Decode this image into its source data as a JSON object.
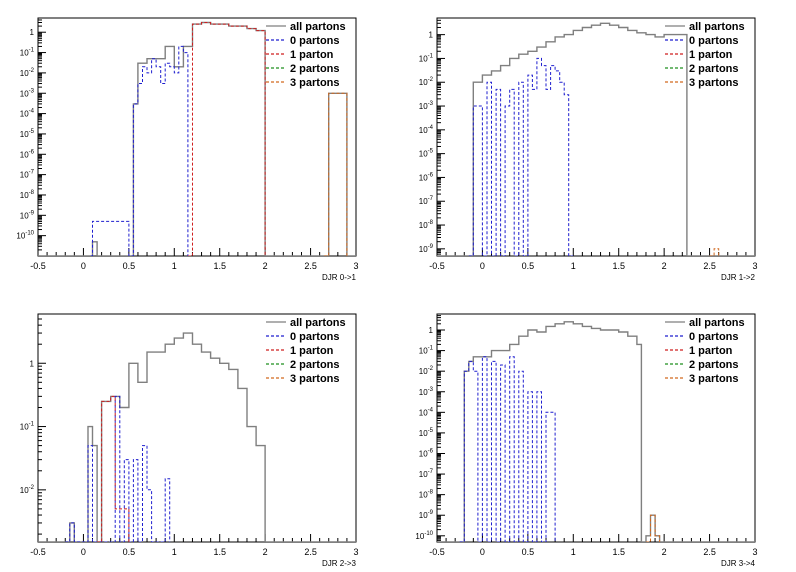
{
  "legend_entries": [
    {
      "label": "all partons",
      "color": "#7f7f7f",
      "style": "solid"
    },
    {
      "label": "0 partons",
      "color": "#1f1fcf",
      "style": "dashed"
    },
    {
      "label": "1 parton",
      "color": "#cf1f1f",
      "style": "dashed"
    },
    {
      "label": "2 partons",
      "color": "#1f8f1f",
      "style": "dashed"
    },
    {
      "label": "3 partons",
      "color": "#d2691e",
      "style": "dashed"
    }
  ],
  "chart_data": [
    {
      "type": "line",
      "xlabel": "DJR 0->1",
      "yscale": "log",
      "xlim": [
        -0.5,
        3
      ],
      "ylim": [
        1e-11,
        5
      ],
      "xticks": [
        "-0.5",
        "0",
        "0.5",
        "1",
        "1.5",
        "2",
        "2.5",
        "3"
      ],
      "yticks": [
        {
          "v": 1,
          "t": "1"
        },
        {
          "v": 0.1,
          "t": "10^-1"
        },
        {
          "v": 0.01,
          "t": "10^-2"
        },
        {
          "v": 0.001,
          "t": "10^-3"
        },
        {
          "v": 0.0001,
          "t": "10^-4"
        },
        {
          "v": 1e-05,
          "t": "10^-5"
        },
        {
          "v": 1e-06,
          "t": "10^-6"
        },
        {
          "v": 1e-07,
          "t": "10^-7"
        },
        {
          "v": 1e-08,
          "t": "10^-8"
        },
        {
          "v": 1e-09,
          "t": "10^-9"
        },
        {
          "v": 1e-10,
          "t": "10^-10"
        }
      ],
      "series": [
        {
          "name": "all partons",
          "x": [
            -0.5,
            0.1,
            0.15,
            0.5,
            0.55,
            0.6,
            0.7,
            0.8,
            0.9,
            1.0,
            1.1,
            1.2,
            1.3,
            1.4,
            1.5,
            1.6,
            1.7,
            1.8,
            1.9,
            2.0,
            2.65,
            2.7,
            2.85,
            2.9,
            3.0
          ],
          "y": [
            1e-11,
            5e-11,
            1e-11,
            1e-11,
            0.0003,
            0.03,
            0.05,
            0.05,
            0.2,
            0.02,
            0.2,
            2.5,
            3,
            2.5,
            2.5,
            2,
            2,
            1.5,
            1.2,
            1e-11,
            1e-11,
            0.001,
            0.001,
            1e-11,
            1e-11
          ]
        },
        {
          "name": "0 partons",
          "x": [
            0.08,
            0.1,
            0.5,
            0.55,
            0.6,
            0.65,
            0.7,
            0.75,
            0.8,
            0.85,
            0.9,
            0.95,
            1.0,
            1.05,
            1.1,
            1.15
          ],
          "y": [
            1e-11,
            5e-10,
            1e-11,
            0.0003,
            0.003,
            0.02,
            0.01,
            0.05,
            0.02,
            0.003,
            0.03,
            0.02,
            0.01,
            0.2,
            0.1,
            1e-11
          ]
        },
        {
          "name": "1 parton",
          "x": [
            1.15,
            1.2,
            1.3,
            1.4,
            1.5,
            1.6,
            1.7,
            1.8,
            1.9,
            2.0
          ],
          "y": [
            1e-11,
            2.5,
            3,
            2.5,
            2.5,
            2,
            2,
            1.5,
            1.2,
            1e-11
          ]
        },
        {
          "name": "3 partons",
          "x": [
            2.65,
            2.7,
            2.85,
            2.9
          ],
          "y": [
            1e-11,
            0.001,
            0.001,
            1e-11
          ]
        }
      ]
    },
    {
      "type": "line",
      "xlabel": "DJR 1->2",
      "yscale": "log",
      "xlim": [
        -0.5,
        3
      ],
      "ylim": [
        5e-10,
        5
      ],
      "xticks": [
        "-0.5",
        "0",
        "0.5",
        "1",
        "1.5",
        "2",
        "2.5",
        "3"
      ],
      "yticks": [
        {
          "v": 1,
          "t": "1"
        },
        {
          "v": 0.1,
          "t": "10^-1"
        },
        {
          "v": 0.01,
          "t": "10^-2"
        },
        {
          "v": 0.001,
          "t": "10^-3"
        },
        {
          "v": 0.0001,
          "t": "10^-4"
        },
        {
          "v": 1e-05,
          "t": "10^-5"
        },
        {
          "v": 1e-06,
          "t": "10^-6"
        },
        {
          "v": 1e-07,
          "t": "10^-7"
        },
        {
          "v": 1e-08,
          "t": "10^-8"
        },
        {
          "v": 1e-09,
          "t": "10^-9"
        }
      ],
      "series": [
        {
          "name": "all partons",
          "x": [
            -0.5,
            -0.15,
            -0.1,
            0.0,
            0.1,
            0.2,
            0.3,
            0.4,
            0.5,
            0.6,
            0.7,
            0.8,
            0.9,
            1.0,
            1.1,
            1.2,
            1.3,
            1.4,
            1.5,
            1.6,
            1.7,
            1.8,
            1.9,
            2.0,
            2.2,
            2.25,
            3.0
          ],
          "y": [
            5e-10,
            5e-10,
            0.01,
            0.02,
            0.03,
            0.05,
            0.1,
            0.15,
            0.2,
            0.3,
            0.5,
            0.8,
            1,
            1.5,
            2,
            2.5,
            3,
            2.5,
            2,
            1.5,
            1.2,
            1,
            0.8,
            1,
            1,
            5e-10,
            5e-10
          ]
        },
        {
          "name": "0 partons",
          "x": [
            -0.15,
            -0.1,
            0.0,
            0.05,
            0.1,
            0.15,
            0.2,
            0.25,
            0.3,
            0.35,
            0.4,
            0.45,
            0.5,
            0.55,
            0.6,
            0.65,
            0.7,
            0.75,
            0.8,
            0.85,
            0.9,
            0.95,
            1.0
          ],
          "y": [
            5e-10,
            0.001,
            5e-10,
            0.01,
            5e-10,
            0.005,
            5e-10,
            0.001,
            0.005,
            5e-10,
            0.01,
            5e-10,
            0.02,
            0.005,
            0.1,
            0.05,
            0.005,
            0.05,
            0.03,
            0.01,
            0.003,
            5e-10,
            5e-10
          ]
        },
        {
          "name": "3 partons",
          "x": [
            2.5,
            2.55,
            2.6
          ],
          "y": [
            5e-10,
            1e-09,
            5e-10
          ]
        }
      ]
    },
    {
      "type": "line",
      "xlabel": "DJR 2->3",
      "yscale": "log",
      "xlim": [
        -0.5,
        3
      ],
      "ylim": [
        0.0015,
        6
      ],
      "xticks": [
        "-0.5",
        "0",
        "0.5",
        "1",
        "1.5",
        "2",
        "2.5",
        "3"
      ],
      "yticks": [
        {
          "v": 1,
          "t": "1"
        },
        {
          "v": 0.1,
          "t": "10^-1"
        },
        {
          "v": 0.01,
          "t": "10^-2"
        }
      ],
      "series": [
        {
          "name": "all partons",
          "x": [
            -0.5,
            -0.2,
            -0.15,
            -0.1,
            0.0,
            0.05,
            0.1,
            0.15,
            0.2,
            0.3,
            0.4,
            0.5,
            0.6,
            0.7,
            0.8,
            0.9,
            1.0,
            1.1,
            1.2,
            1.3,
            1.4,
            1.5,
            1.6,
            1.7,
            1.8,
            1.9,
            2.0,
            3.0
          ],
          "y": [
            0.0015,
            0.0015,
            0.003,
            0.0015,
            0.0015,
            0.1,
            0.05,
            0.0015,
            0.25,
            0.3,
            0.2,
            1,
            0.5,
            1.5,
            1.5,
            2,
            2.5,
            3,
            2,
            1.5,
            1.2,
            1,
            0.8,
            0.4,
            0.1,
            0.05,
            0.0015,
            0.0015
          ]
        },
        {
          "name": "0 partons",
          "x": [
            -0.2,
            -0.15,
            -0.1,
            0.0,
            0.05,
            0.1,
            0.3,
            0.35,
            0.4,
            0.45,
            0.5,
            0.55,
            0.6,
            0.65,
            0.7,
            0.75,
            0.85,
            0.9,
            0.95
          ],
          "y": [
            0.0015,
            0.003,
            0.0015,
            0.0015,
            0.05,
            0.0015,
            0.0015,
            0.3,
            0.0015,
            0.03,
            0.0015,
            0.03,
            0.0015,
            0.05,
            0.01,
            0.0015,
            0.0015,
            0.015,
            0.0015
          ]
        },
        {
          "name": "1 parton",
          "x": [
            0.15,
            0.2,
            0.3,
            0.35,
            0.5
          ],
          "y": [
            0.0015,
            0.25,
            0.3,
            0.005,
            0.0015
          ]
        }
      ]
    },
    {
      "type": "line",
      "xlabel": "DJR 3->4",
      "yscale": "log",
      "xlim": [
        -0.5,
        3
      ],
      "ylim": [
        5e-11,
        6
      ],
      "xticks": [
        "-0.5",
        "0",
        "0.5",
        "1",
        "1.5",
        "2",
        "2.5",
        "3"
      ],
      "yticks": [
        {
          "v": 1,
          "t": "1"
        },
        {
          "v": 0.1,
          "t": "10^-1"
        },
        {
          "v": 0.01,
          "t": "10^-2"
        },
        {
          "v": 0.001,
          "t": "10^-3"
        },
        {
          "v": 0.0001,
          "t": "10^-4"
        },
        {
          "v": 1e-05,
          "t": "10^-5"
        },
        {
          "v": 1e-06,
          "t": "10^-6"
        },
        {
          "v": 1e-07,
          "t": "10^-7"
        },
        {
          "v": 1e-08,
          "t": "10^-8"
        },
        {
          "v": 1e-09,
          "t": "10^-9"
        },
        {
          "v": 1e-10,
          "t": "10^-10"
        }
      ],
      "series": [
        {
          "name": "all partons",
          "x": [
            -0.5,
            -0.25,
            -0.2,
            -0.15,
            -0.1,
            0.0,
            0.1,
            0.2,
            0.3,
            0.4,
            0.5,
            0.6,
            0.7,
            0.8,
            0.9,
            1.0,
            1.1,
            1.2,
            1.3,
            1.4,
            1.5,
            1.6,
            1.7,
            1.75,
            1.8,
            1.85,
            1.9,
            1.95,
            3.0
          ],
          "y": [
            5e-11,
            5e-11,
            0.01,
            0.03,
            0.05,
            0.05,
            0.1,
            0.1,
            0.2,
            0.5,
            1,
            0.8,
            1.5,
            2,
            2.5,
            2,
            1.5,
            1.2,
            1,
            1,
            0.8,
            0.5,
            0.2,
            5e-11,
            1e-10,
            1e-09,
            1e-10,
            5e-11,
            5e-11
          ]
        },
        {
          "name": "0 partons",
          "x": [
            -0.25,
            -0.2,
            -0.15,
            -0.1,
            -0.05,
            0.0,
            0.05,
            0.1,
            0.15,
            0.2,
            0.25,
            0.3,
            0.35,
            0.4,
            0.45,
            0.5,
            0.55,
            0.6,
            0.65,
            0.7,
            0.75,
            0.8
          ],
          "y": [
            5e-11,
            0.01,
            0.03,
            0.01,
            5e-11,
            0.05,
            5e-11,
            0.03,
            5e-11,
            0.02,
            5e-11,
            0.05,
            5e-11,
            0.01,
            5e-11,
            0.001,
            5e-11,
            0.001,
            5e-11,
            0.0001,
            0.0001,
            5e-11
          ]
        },
        {
          "name": "3 partons",
          "x": [
            1.8,
            1.85,
            1.9,
            1.95
          ],
          "y": [
            5e-11,
            1e-09,
            1e-10,
            5e-11
          ]
        }
      ]
    }
  ]
}
